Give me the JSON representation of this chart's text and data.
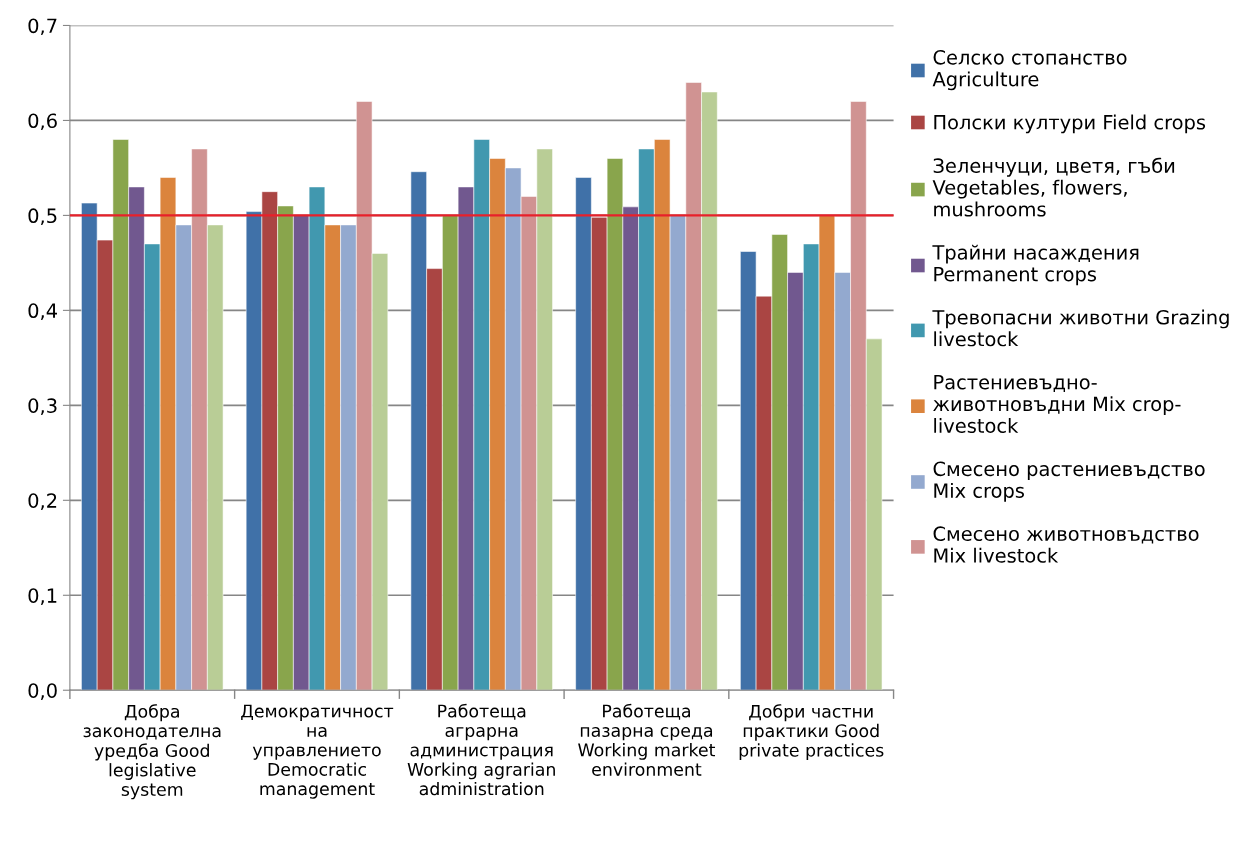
{
  "chart_data": {
    "type": "bar",
    "categories": [
      "Добра\nзаконодателна\nуредба Good\nlegislative\nsystem",
      "Демократичност\nна\nуправлението\nDemocratic\nmanagement",
      "Работеща\nаграрна\nадминистрация\nWorking agrarian\nadministration",
      "Работеща\nпазарна среда\nWorking market\nenvironment",
      "Добри частни\nпрактики Good\nprivate practices"
    ],
    "series": [
      {
        "name": "Селско стопанство\nAgriculture",
        "color": "#4071a8",
        "values": [
          0.513,
          0.504,
          0.546,
          0.54,
          0.462
        ]
      },
      {
        "name": "Полски култури Field crops",
        "color": "#aa4543",
        "values": [
          0.474,
          0.525,
          0.444,
          0.498,
          0.415
        ]
      },
      {
        "name": "Зеленчуци, цветя, гъби\nVegetables, flowers,\nmushrooms",
        "color": "#89a54c",
        "values": [
          0.58,
          0.51,
          0.5,
          0.56,
          0.48
        ]
      },
      {
        "name": "Трайни насаждения\nPermanent crops",
        "color": "#71588f",
        "values": [
          0.53,
          0.501,
          0.53,
          0.509,
          0.44
        ]
      },
      {
        "name": "Тревопасни животни Grazing\nlivestock",
        "color": "#4198af",
        "values": [
          0.47,
          0.53,
          0.58,
          0.57,
          0.47
        ]
      },
      {
        "name": "Растениевъдно-\nживотновъдни Mix crop-\nlivestock",
        "color": "#db843d",
        "values": [
          0.54,
          0.49,
          0.56,
          0.58,
          0.5
        ]
      },
      {
        "name": "Смесено растениевъдство\nMix crops",
        "color": "#93a9cf",
        "values": [
          0.49,
          0.49,
          0.55,
          0.5,
          0.44
        ]
      },
      {
        "name": "Смесено животновъдство\nMix livestock",
        "color": "#d09392",
        "values": [
          0.57,
          0.62,
          0.52,
          0.64,
          0.62
        ]
      },
      {
        "color": "#b9cd96",
        "values": [
          0.49,
          0.46,
          0.57,
          0.63,
          0.37
        ]
      }
    ],
    "ylim": [
      0,
      0.7
    ],
    "yticks": [
      {
        "value": 0,
        "label": "0,0"
      },
      {
        "value": 0.1,
        "label": "0,1"
      },
      {
        "value": 0.2,
        "label": "0,2"
      },
      {
        "value": 0.3,
        "label": "0,3"
      },
      {
        "value": 0.4,
        "label": "0,4"
      },
      {
        "value": 0.5,
        "label": "0,5"
      },
      {
        "value": 0.6,
        "label": "0,6"
      },
      {
        "value": 0.7,
        "label": "0,7"
      }
    ],
    "grid": "y",
    "legend": "right",
    "ref_lines": [
      {
        "axis": "y",
        "value": 0.5,
        "color": "#e8202a"
      }
    ]
  }
}
